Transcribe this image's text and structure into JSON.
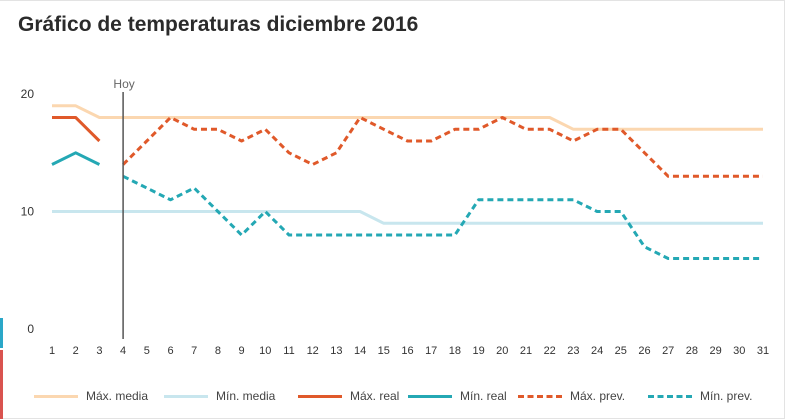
{
  "title": "Gráfico de temperaturas diciembre 2016",
  "colors": {
    "max_media": "#fbd7b0",
    "min_media": "#c8e6ee",
    "max_real": "#e0592a",
    "min_real": "#24a8b4",
    "today_line": "#555555",
    "axis_text": "#333333",
    "edge_blue": "#2aa7c8",
    "edge_red": "#d9534f"
  },
  "chart_data": {
    "type": "line",
    "title": "Gráfico de temperaturas diciembre 2016",
    "xlabel": "",
    "ylabel": "",
    "x": [
      1,
      2,
      3,
      4,
      5,
      6,
      7,
      8,
      9,
      10,
      11,
      12,
      13,
      14,
      15,
      16,
      17,
      18,
      19,
      20,
      21,
      22,
      23,
      24,
      25,
      26,
      27,
      28,
      29,
      30,
      31
    ],
    "x_tick_labels": [
      "1",
      "2",
      "3",
      "4",
      "5",
      "6",
      "7",
      "8",
      "9",
      "10",
      "11",
      "12",
      "13",
      "14",
      "15",
      "16",
      "17",
      "18",
      "19",
      "20",
      "21",
      "22",
      "23",
      "24",
      "25",
      "26",
      "27",
      "28",
      "29",
      "30",
      "31"
    ],
    "y_ticks": [
      0,
      10,
      20
    ],
    "y_tick_labels": [
      "0",
      "10",
      "20"
    ],
    "ylim": [
      0,
      20.8
    ],
    "grid": false,
    "today": {
      "x": 4,
      "label": "Hoy"
    },
    "legend_position": "bottom",
    "series": [
      {
        "name": "Máx. media",
        "style": "solid",
        "color_key": "max_media",
        "x": [
          1,
          2,
          3,
          4,
          5,
          6,
          7,
          8,
          9,
          10,
          11,
          12,
          13,
          14,
          15,
          16,
          17,
          18,
          19,
          20,
          21,
          22,
          23,
          24,
          25,
          26,
          27,
          28,
          29,
          30,
          31
        ],
        "values": [
          19,
          19,
          18,
          18,
          18,
          18,
          18,
          18,
          18,
          18,
          18,
          18,
          18,
          18,
          18,
          18,
          18,
          18,
          18,
          18,
          18,
          18,
          17,
          17,
          17,
          17,
          17,
          17,
          17,
          17,
          17
        ]
      },
      {
        "name": "Mín. media",
        "style": "solid",
        "color_key": "min_media",
        "x": [
          1,
          2,
          3,
          4,
          5,
          6,
          7,
          8,
          9,
          10,
          11,
          12,
          13,
          14,
          15,
          16,
          17,
          18,
          19,
          20,
          21,
          22,
          23,
          24,
          25,
          26,
          27,
          28,
          29,
          30,
          31
        ],
        "values": [
          10,
          10,
          10,
          10,
          10,
          10,
          10,
          10,
          10,
          10,
          10,
          10,
          10,
          10,
          9,
          9,
          9,
          9,
          9,
          9,
          9,
          9,
          9,
          9,
          9,
          9,
          9,
          9,
          9,
          9,
          9
        ]
      },
      {
        "name": "Máx. real",
        "style": "solid",
        "color_key": "max_real",
        "x": [
          1,
          2,
          3
        ],
        "values": [
          18,
          18,
          16
        ]
      },
      {
        "name": "Mín. real",
        "style": "solid",
        "color_key": "min_real",
        "x": [
          1,
          2,
          3
        ],
        "values": [
          14,
          15,
          14
        ]
      },
      {
        "name": "Máx. prev.",
        "style": "dashed",
        "color_key": "max_real",
        "x": [
          4,
          5,
          6,
          7,
          8,
          9,
          10,
          11,
          12,
          13,
          14,
          15,
          16,
          17,
          18,
          19,
          20,
          21,
          22,
          23,
          24,
          25,
          26,
          27,
          28,
          29,
          30,
          31
        ],
        "values": [
          14,
          16,
          18,
          17,
          17,
          16,
          17,
          15,
          14,
          15,
          18,
          17,
          16,
          16,
          17,
          17,
          18,
          17,
          17,
          16,
          17,
          17,
          15,
          13,
          13,
          13,
          13,
          13
        ]
      },
      {
        "name": "Mín. prev.",
        "style": "dashed",
        "color_key": "min_real",
        "x": [
          4,
          5,
          6,
          7,
          8,
          9,
          10,
          11,
          12,
          13,
          14,
          15,
          16,
          17,
          18,
          19,
          20,
          21,
          22,
          23,
          24,
          25,
          26,
          27,
          28,
          29,
          30,
          31
        ],
        "values": [
          13,
          12,
          11,
          12,
          10,
          8,
          10,
          8,
          8,
          8,
          8,
          8,
          8,
          8,
          8,
          11,
          11,
          11,
          11,
          11,
          10,
          10,
          7,
          6,
          6,
          6,
          6,
          6
        ]
      }
    ]
  }
}
